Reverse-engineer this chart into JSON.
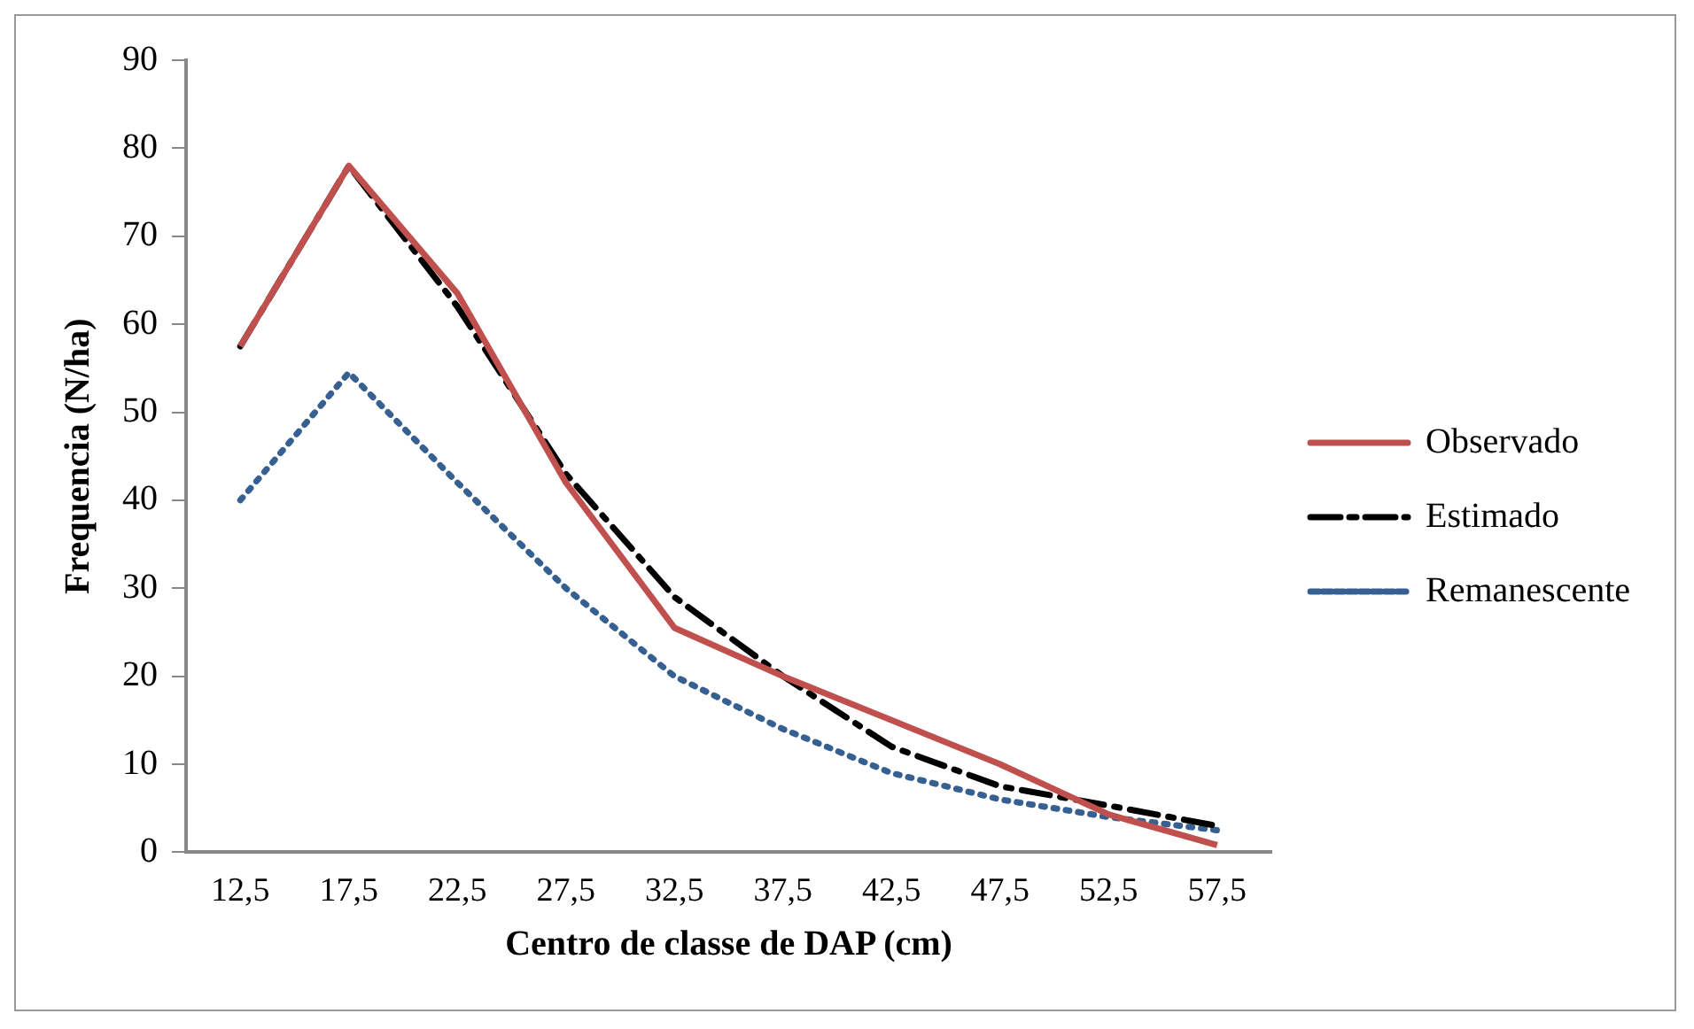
{
  "chart_data": {
    "type": "line",
    "xlabel": "Centro de classe de DAP (cm)",
    "ylabel": "Frequencia (N/ha)",
    "categories": [
      "12,5",
      "17,5",
      "22,5",
      "27,5",
      "32,5",
      "37,5",
      "42,5",
      "47,5",
      "52,5",
      "57,5"
    ],
    "series": [
      {
        "name": "Observado",
        "color": "#c0504d",
        "line_style": "solid",
        "values": [
          57.5,
          78,
          63.5,
          42,
          25.5,
          20,
          15,
          10,
          4.3,
          0.8
        ]
      },
      {
        "name": "Estimado",
        "color": "#000000",
        "line_style": "dashed",
        "values": [
          57.5,
          78,
          62,
          43,
          29,
          20,
          12,
          7.5,
          5.3,
          3
        ]
      },
      {
        "name": "Remanescente",
        "color": "#376092",
        "line_style": "dotted",
        "values": [
          40,
          54.5,
          42,
          30,
          20,
          14,
          9,
          6,
          4,
          2.5
        ]
      }
    ],
    "ylim": [
      0,
      90
    ],
    "yticks": [
      0,
      10,
      20,
      30,
      40,
      50,
      60,
      70,
      80,
      90
    ],
    "grid": false,
    "legend": "right",
    "marker": "none"
  }
}
